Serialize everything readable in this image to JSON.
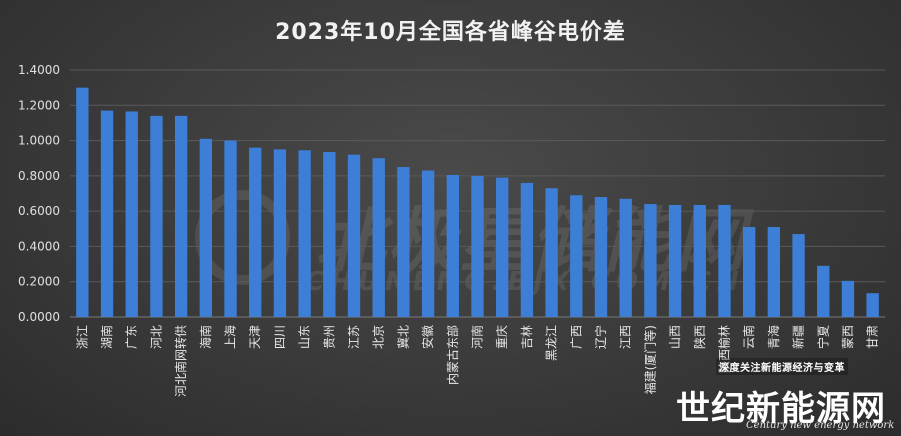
{
  "chart_data": {
    "type": "bar",
    "title": "2023年10月全国各省峰谷电价差",
    "xlabel": "",
    "ylabel": "",
    "ylim": [
      0,
      1.4
    ],
    "yticks": [
      "0.0000",
      "0.2000",
      "0.4000",
      "0.6000",
      "0.8000",
      "1.0000",
      "1.2000",
      "1.4000"
    ],
    "grid": true,
    "bar_color": "#3d7fd6",
    "categories": [
      "浙江",
      "湖南",
      "广东",
      "河北",
      "河北南网转供",
      "海南",
      "上海",
      "天津",
      "四川",
      "山东",
      "贵州",
      "江苏",
      "北京",
      "冀北",
      "安徽",
      "内蒙古东部",
      "河南",
      "重庆",
      "吉林",
      "黑龙江",
      "广西",
      "辽宁",
      "江西",
      "福建(厦门等)",
      "山西",
      "陕西",
      "陕西榆林",
      "云南",
      "青海",
      "新疆",
      "宁夏",
      "蒙西",
      "甘肃"
    ],
    "values": [
      1.3,
      1.17,
      1.165,
      1.14,
      1.14,
      1.01,
      1.0,
      0.96,
      0.95,
      0.945,
      0.935,
      0.92,
      0.9,
      0.85,
      0.83,
      0.805,
      0.8,
      0.79,
      0.76,
      0.73,
      0.69,
      0.68,
      0.67,
      0.64,
      0.635,
      0.635,
      0.635,
      0.51,
      0.51,
      0.47,
      0.29,
      0.205,
      0.135
    ]
  },
  "watermark": {
    "cn": "北极星储能网",
    "en": "CHUNENG.BJX.COM.CN"
  },
  "brand": {
    "slogan": "深度关注新能源经济与变革",
    "name": "世纪新能源网",
    "en": "Century new energy network"
  }
}
